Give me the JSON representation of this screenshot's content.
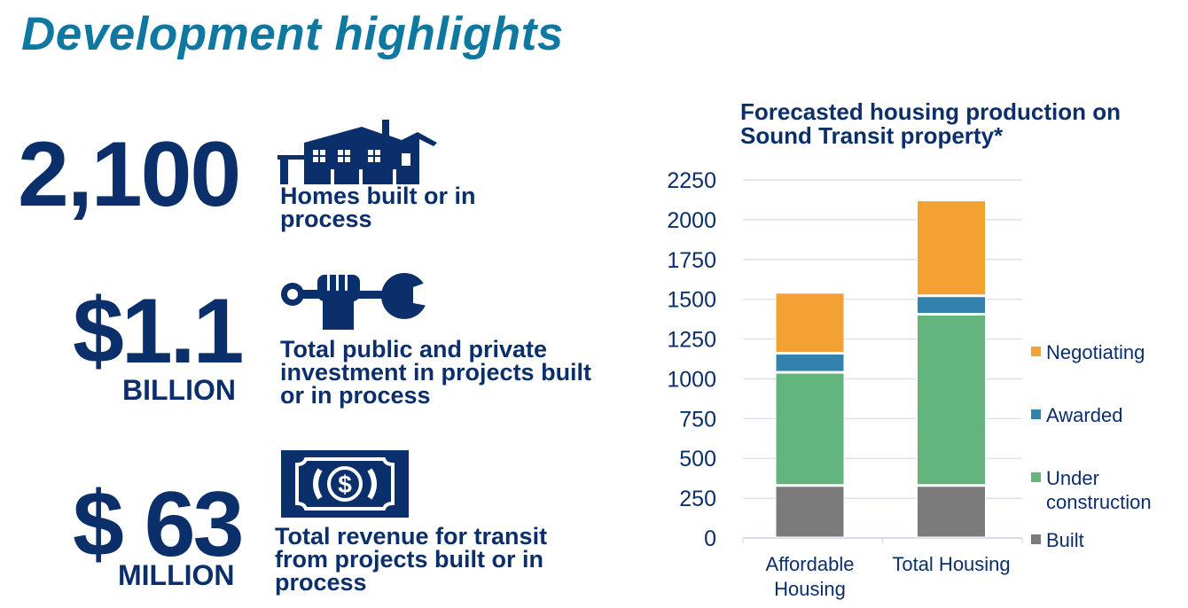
{
  "title": "Development highlights",
  "stats": [
    {
      "value": "2,100",
      "unit": "",
      "description": "Homes built or in process",
      "icon": "houses-icon"
    },
    {
      "value": "$1.1",
      "unit": "BILLION",
      "description": "Total public and private investment in projects built or in process",
      "icon": "hand-wrench-key-icon"
    },
    {
      "value": "$ 63",
      "unit": "MILLION",
      "description": "Total revenue for transit from projects built or in process",
      "icon": "dollar-bill-icon"
    }
  ],
  "colors": {
    "navy": "#0b2f6b",
    "title": "#0e78a0"
  },
  "chart_data": {
    "type": "bar",
    "stacked": true,
    "title": "Forecasted housing production on Sound Transit property*",
    "categories": [
      "Affordable Housing",
      "Total Housing"
    ],
    "series": [
      {
        "name": "Built",
        "values": [
          330,
          330
        ],
        "color": "#7b7b7b"
      },
      {
        "name": "Under construction",
        "values": [
          711,
          1076
        ],
        "color": "#61b57d"
      },
      {
        "name": "Awarded",
        "values": [
          120,
          116
        ],
        "color": "#3382ae"
      },
      {
        "name": "Negotiating",
        "values": [
          383,
          602
        ],
        "color": "#f2a132"
      }
    ],
    "ylim": [
      0,
      2250
    ],
    "yticks": [
      0,
      250,
      500,
      750,
      1000,
      1250,
      1500,
      1750,
      2000,
      2250
    ],
    "grid": true,
    "legend": "right"
  }
}
